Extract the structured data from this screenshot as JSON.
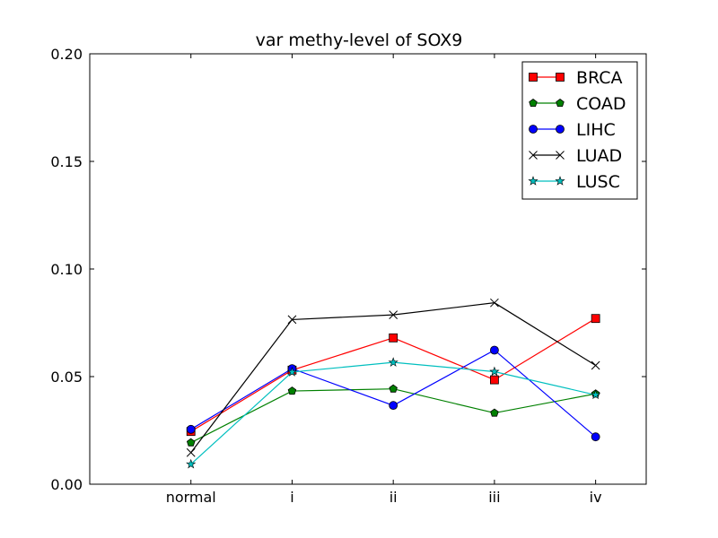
{
  "chart_data": {
    "type": "line",
    "title": "var methy-level of SOX9",
    "xlabel": "",
    "ylabel": "",
    "categories": [
      "normal",
      "i",
      "ii",
      "iii",
      "iv"
    ],
    "x_range": [
      -1,
      4.5
    ],
    "ylim": [
      0,
      0.2
    ],
    "yticks": [
      "0.00",
      "0.05",
      "0.10",
      "0.15",
      "0.20"
    ],
    "grid": false,
    "legend_position": "top-right",
    "series": [
      {
        "name": "BRCA",
        "color": "#ff0000",
        "marker": "square",
        "values": [
          0.0245,
          0.053,
          0.068,
          0.0485,
          0.077
        ]
      },
      {
        "name": "COAD",
        "color": "#008000",
        "marker": "pentagon",
        "values": [
          0.0193,
          0.0433,
          0.0443,
          0.0331,
          0.042
        ]
      },
      {
        "name": "LIHC",
        "color": "#0000ff",
        "marker": "circle",
        "values": [
          0.0255,
          0.0537,
          0.0366,
          0.0623,
          0.022
        ]
      },
      {
        "name": "LUAD",
        "color": "#000000",
        "marker": "x",
        "values": [
          0.0147,
          0.0765,
          0.0787,
          0.0843,
          0.0552
        ]
      },
      {
        "name": "LUSC",
        "color": "#00bfbf",
        "marker": "star",
        "values": [
          0.0093,
          0.0521,
          0.0566,
          0.0523,
          0.0415
        ]
      }
    ]
  }
}
